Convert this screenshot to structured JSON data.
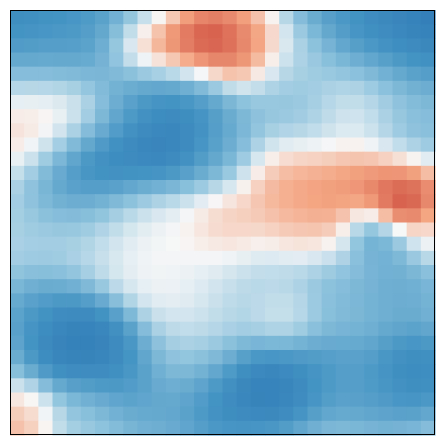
{
  "chart_data": {
    "type": "heatmap",
    "colormap": "RdBu_r",
    "color_low": "#053061",
    "color_mid": "#f7f7f7",
    "color_high": "#67001f",
    "vmin": -1.0,
    "vmax": 1.0,
    "axes_ticks": false,
    "grid": false,
    "legend": "none",
    "rows": 30,
    "cols": 30,
    "anchors": [
      {
        "x": 0,
        "y": 0,
        "v": -0.75,
        "r": 3.0
      },
      {
        "x": 4,
        "y": 0,
        "v": -0.6,
        "r": 3.0
      },
      {
        "x": 8,
        "y": 0,
        "v": -0.4,
        "r": 2.5
      },
      {
        "x": 24,
        "y": 0,
        "v": -0.55,
        "r": 3.0
      },
      {
        "x": 29,
        "y": 0,
        "v": -0.9,
        "r": 3.0
      },
      {
        "x": 27,
        "y": 2,
        "v": -0.55,
        "r": 2.5
      },
      {
        "x": 2,
        "y": 2,
        "v": -0.35,
        "r": 2.5
      },
      {
        "x": 9,
        "y": 2,
        "v": 0.5,
        "r": 1.5
      },
      {
        "x": 11,
        "y": 2,
        "v": 0.7,
        "r": 1.5
      },
      {
        "x": 13,
        "y": 2,
        "v": 0.85,
        "r": 1.5
      },
      {
        "x": 15,
        "y": 2,
        "v": 0.6,
        "r": 1.5
      },
      {
        "x": 17,
        "y": 2,
        "v": 0.35,
        "r": 1.5
      },
      {
        "x": 20,
        "y": 3,
        "v": -0.1,
        "r": 1.5
      },
      {
        "x": 1,
        "y": 7,
        "v": 0.2,
        "r": 2.5
      },
      {
        "x": 4,
        "y": 8,
        "v": 0.15,
        "r": 2.0
      },
      {
        "x": 8,
        "y": 6,
        "v": -0.25,
        "r": 2.0
      },
      {
        "x": 9,
        "y": 6,
        "v": -0.6,
        "r": 2.0
      },
      {
        "x": 11,
        "y": 7,
        "v": -0.75,
        "r": 2.0
      },
      {
        "x": 10,
        "y": 9,
        "v": -0.75,
        "r": 2.0
      },
      {
        "x": 7,
        "y": 10,
        "v": -0.75,
        "r": 2.0
      },
      {
        "x": 5,
        "y": 10,
        "v": -0.85,
        "r": 1.8
      },
      {
        "x": 4,
        "y": 12,
        "v": -0.65,
        "r": 2.0
      },
      {
        "x": 12,
        "y": 5,
        "v": -0.4,
        "r": 1.8
      },
      {
        "x": 14,
        "y": 9,
        "v": -0.45,
        "r": 2.0
      },
      {
        "x": 20,
        "y": 6,
        "v": -0.3,
        "r": 2.5
      },
      {
        "x": 24,
        "y": 6,
        "v": 0.1,
        "r": 2.0
      },
      {
        "x": 27,
        "y": 6,
        "v": -0.2,
        "r": 2.5
      },
      {
        "x": 28,
        "y": 9,
        "v": -0.4,
        "r": 2.0
      },
      {
        "x": 19,
        "y": 12,
        "v": 0.3,
        "r": 2.0
      },
      {
        "x": 22,
        "y": 13,
        "v": 0.4,
        "r": 2.2
      },
      {
        "x": 25,
        "y": 12,
        "v": 0.35,
        "r": 2.0
      },
      {
        "x": 26,
        "y": 12,
        "v": 0.55,
        "r": 1.5
      },
      {
        "x": 27,
        "y": 13,
        "v": 0.9,
        "r": 1.2
      },
      {
        "x": 28,
        "y": 12,
        "v": 0.7,
        "r": 1.5
      },
      {
        "x": 15,
        "y": 15,
        "v": 0.25,
        "r": 1.8
      },
      {
        "x": 20,
        "y": 15,
        "v": 0.2,
        "r": 1.8
      },
      {
        "x": 25,
        "y": 15,
        "v": -0.7,
        "r": 1.2
      },
      {
        "x": 26,
        "y": 16,
        "v": -0.4,
        "r": 1.2
      },
      {
        "x": 29,
        "y": 15,
        "v": 0.1,
        "r": 1.5
      },
      {
        "x": 2,
        "y": 15,
        "v": -0.2,
        "r": 2.5
      },
      {
        "x": 6,
        "y": 14,
        "v": -0.1,
        "r": 2.5
      },
      {
        "x": 10,
        "y": 16,
        "v": 0.05,
        "r": 2.5
      },
      {
        "x": 16,
        "y": 19,
        "v": -0.2,
        "r": 2.5
      },
      {
        "x": 22,
        "y": 19,
        "v": -0.35,
        "r": 2.5
      },
      {
        "x": 27,
        "y": 19,
        "v": -0.45,
        "r": 2.0
      },
      {
        "x": 12,
        "y": 19,
        "v": 0.0,
        "r": 2.0
      },
      {
        "x": 19,
        "y": 21,
        "v": 0.05,
        "r": 1.5
      },
      {
        "x": 2,
        "y": 21,
        "v": -0.55,
        "r": 2.0
      },
      {
        "x": 4,
        "y": 23,
        "v": -0.8,
        "r": 2.0
      },
      {
        "x": 6,
        "y": 24,
        "v": -0.7,
        "r": 2.0
      },
      {
        "x": 8,
        "y": 26,
        "v": -0.55,
        "r": 2.0
      },
      {
        "x": 12,
        "y": 24,
        "v": -0.15,
        "r": 2.0
      },
      {
        "x": 14,
        "y": 27,
        "v": -0.7,
        "r": 2.0
      },
      {
        "x": 18,
        "y": 26,
        "v": -0.8,
        "r": 2.0
      },
      {
        "x": 21,
        "y": 25,
        "v": -0.55,
        "r": 2.0
      },
      {
        "x": 25,
        "y": 26,
        "v": -0.5,
        "r": 2.0
      },
      {
        "x": 28,
        "y": 25,
        "v": -0.7,
        "r": 2.0
      },
      {
        "x": 11,
        "y": 28,
        "v": -0.4,
        "r": 2.0
      },
      {
        "x": 5,
        "y": 28,
        "v": -0.2,
        "r": 2.0
      },
      {
        "x": 0,
        "y": 29,
        "v": 0.3,
        "r": 1.2
      },
      {
        "x": 1,
        "y": 28,
        "v": 0.1,
        "r": 1.2
      }
    ]
  }
}
